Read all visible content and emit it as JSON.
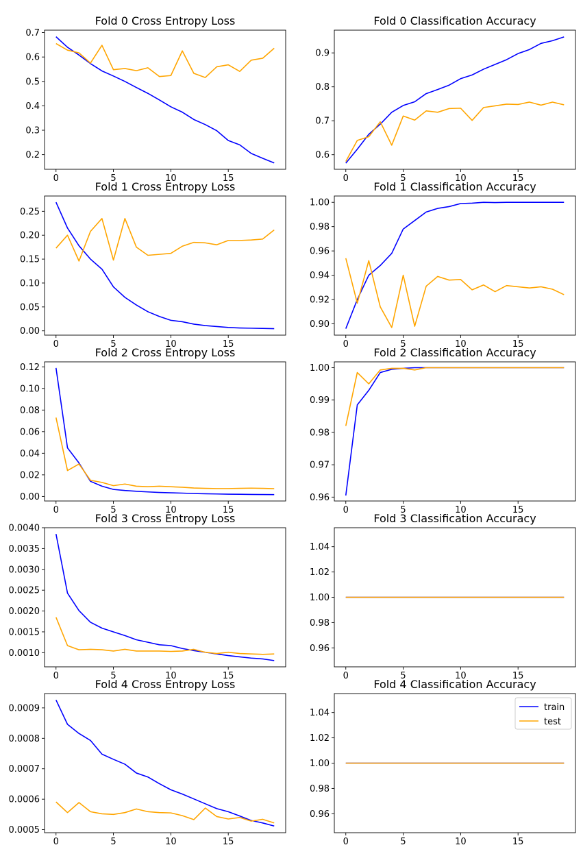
{
  "figure": {
    "background": "#ffffff"
  },
  "legend": {
    "location": "upper right",
    "entries": [
      {
        "label": "train",
        "color": "#0000ff"
      },
      {
        "label": "test",
        "color": "#ffa500"
      }
    ]
  },
  "chart_data": [
    {
      "type": "line",
      "title": "Fold 0 Cross Entropy Loss",
      "xlabel": "",
      "ylabel": "",
      "x": [
        0,
        1,
        2,
        3,
        4,
        5,
        6,
        7,
        8,
        9,
        10,
        11,
        12,
        13,
        14,
        15,
        16,
        17,
        18,
        19
      ],
      "xlim": [
        -1.0,
        20.0
      ],
      "ylim": [
        0.14,
        0.71
      ],
      "xticks": [
        0,
        5,
        10,
        15
      ],
      "yticks": [
        0.2,
        0.3,
        0.4,
        0.5,
        0.6,
        0.7
      ],
      "ytick_labels": [
        "0.2",
        "0.3",
        "0.4",
        "0.5",
        "0.6",
        "0.7"
      ],
      "grid": false,
      "legend": false,
      "series": [
        {
          "name": "train",
          "color": "#0000ff",
          "values": [
            0.683,
            0.64,
            0.608,
            0.573,
            0.543,
            0.522,
            0.5,
            0.475,
            0.451,
            0.424,
            0.396,
            0.374,
            0.344,
            0.323,
            0.298,
            0.258,
            0.24,
            0.205,
            0.185,
            0.166
          ]
        },
        {
          "name": "test",
          "color": "#ffa500",
          "values": [
            0.655,
            0.628,
            0.617,
            0.575,
            0.648,
            0.548,
            0.553,
            0.544,
            0.556,
            0.52,
            0.524,
            0.625,
            0.533,
            0.516,
            0.56,
            0.568,
            0.541,
            0.587,
            0.595,
            0.636
          ]
        }
      ]
    },
    {
      "type": "line",
      "title": "Fold 0 Classification Accuracy",
      "xlabel": "",
      "ylabel": "",
      "x": [
        0,
        1,
        2,
        3,
        4,
        5,
        6,
        7,
        8,
        9,
        10,
        11,
        12,
        13,
        14,
        15,
        16,
        17,
        18,
        19
      ],
      "xlim": [
        -1.0,
        20.0
      ],
      "ylim": [
        0.557,
        0.967
      ],
      "xticks": [
        0,
        5,
        10,
        15
      ],
      "yticks": [
        0.6,
        0.7,
        0.8,
        0.9
      ],
      "ytick_labels": [
        "0.6",
        "0.7",
        "0.8",
        "0.9"
      ],
      "grid": false,
      "legend": false,
      "series": [
        {
          "name": "train",
          "color": "#0000ff",
          "values": [
            0.575,
            0.616,
            0.66,
            0.69,
            0.725,
            0.745,
            0.756,
            0.78,
            0.792,
            0.805,
            0.824,
            0.835,
            0.852,
            0.866,
            0.88,
            0.898,
            0.91,
            0.928,
            0.936,
            0.947
          ]
        },
        {
          "name": "test",
          "color": "#ffa500",
          "values": [
            0.58,
            0.642,
            0.653,
            0.697,
            0.628,
            0.714,
            0.702,
            0.729,
            0.725,
            0.736,
            0.737,
            0.701,
            0.739,
            0.744,
            0.749,
            0.748,
            0.755,
            0.746,
            0.755,
            0.747
          ]
        }
      ]
    },
    {
      "type": "line",
      "title": "Fold 1 Cross Entropy Loss",
      "xlabel": "",
      "ylabel": "",
      "x": [
        0,
        1,
        2,
        3,
        4,
        5,
        6,
        7,
        8,
        9,
        10,
        11,
        12,
        13,
        14,
        15,
        16,
        17,
        18,
        19
      ],
      "xlim": [
        -1.0,
        20.0
      ],
      "ylim": [
        -0.009,
        0.282
      ],
      "xticks": [
        0,
        5,
        10,
        15
      ],
      "yticks": [
        0.0,
        0.05,
        0.1,
        0.15,
        0.2,
        0.25
      ],
      "ytick_labels": [
        "0.00",
        "0.05",
        "0.10",
        "0.15",
        "0.20",
        "0.25"
      ],
      "grid": false,
      "legend": false,
      "series": [
        {
          "name": "train",
          "color": "#0000ff",
          "values": [
            0.269,
            0.215,
            0.178,
            0.15,
            0.129,
            0.092,
            0.07,
            0.054,
            0.04,
            0.03,
            0.022,
            0.019,
            0.014,
            0.011,
            0.009,
            0.007,
            0.006,
            0.0055,
            0.005,
            0.0045
          ]
        },
        {
          "name": "test",
          "color": "#ffa500",
          "values": [
            0.173,
            0.2,
            0.146,
            0.208,
            0.235,
            0.148,
            0.235,
            0.175,
            0.158,
            0.16,
            0.162,
            0.177,
            0.185,
            0.184,
            0.18,
            0.189,
            0.189,
            0.19,
            0.192,
            0.211
          ]
        }
      ]
    },
    {
      "type": "line",
      "title": "Fold 1 Classification Accuracy",
      "xlabel": "",
      "ylabel": "",
      "x": [
        0,
        1,
        2,
        3,
        4,
        5,
        6,
        7,
        8,
        9,
        10,
        11,
        12,
        13,
        14,
        15,
        16,
        17,
        18,
        19
      ],
      "xlim": [
        -1.0,
        20.0
      ],
      "ylim": [
        0.8907,
        1.0052
      ],
      "xticks": [
        0,
        5,
        10,
        15
      ],
      "yticks": [
        0.9,
        0.92,
        0.94,
        0.96,
        0.98,
        1.0
      ],
      "ytick_labels": [
        "0.90",
        "0.92",
        "0.94",
        "0.96",
        "0.98",
        "1.00"
      ],
      "grid": false,
      "legend": false,
      "series": [
        {
          "name": "train",
          "color": "#0000ff",
          "values": [
            0.896,
            0.92,
            0.94,
            0.948,
            0.958,
            0.978,
            0.985,
            0.992,
            0.995,
            0.9965,
            0.999,
            0.9993,
            1.0,
            0.9998,
            1.0,
            1.0,
            1.0,
            1.0,
            1.0,
            1.0
          ]
        },
        {
          "name": "test",
          "color": "#ffa500",
          "values": [
            0.954,
            0.917,
            0.952,
            0.914,
            0.897,
            0.94,
            0.898,
            0.931,
            0.939,
            0.936,
            0.9365,
            0.928,
            0.932,
            0.9265,
            0.9315,
            0.9305,
            0.9295,
            0.9305,
            0.9285,
            0.924
          ]
        }
      ]
    },
    {
      "type": "line",
      "title": "Fold 2 Cross Entropy Loss",
      "xlabel": "",
      "ylabel": "",
      "x": [
        0,
        1,
        2,
        3,
        4,
        5,
        6,
        7,
        8,
        9,
        10,
        11,
        12,
        13,
        14,
        15,
        16,
        17,
        18,
        19
      ],
      "xlim": [
        -1.0,
        20.0
      ],
      "ylim": [
        -0.0042,
        0.1246
      ],
      "xticks": [
        0,
        5,
        10,
        15
      ],
      "yticks": [
        0.0,
        0.02,
        0.04,
        0.06,
        0.08,
        0.1,
        0.12
      ],
      "ytick_labels": [
        "0.00",
        "0.02",
        "0.04",
        "0.06",
        "0.08",
        "0.10",
        "0.12"
      ],
      "grid": false,
      "legend": false,
      "series": [
        {
          "name": "train",
          "color": "#0000ff",
          "values": [
            0.119,
            0.045,
            0.031,
            0.014,
            0.0095,
            0.0065,
            0.0055,
            0.0048,
            0.0042,
            0.0037,
            0.0034,
            0.0031,
            0.0027,
            0.0025,
            0.0023,
            0.0021,
            0.002,
            0.0019,
            0.0018,
            0.0017
          ]
        },
        {
          "name": "test",
          "color": "#ffa500",
          "values": [
            0.073,
            0.024,
            0.03,
            0.015,
            0.013,
            0.01,
            0.0115,
            0.0095,
            0.009,
            0.0095,
            0.009,
            0.0085,
            0.0078,
            0.0075,
            0.0073,
            0.0073,
            0.0075,
            0.0077,
            0.0075,
            0.0072
          ]
        }
      ]
    },
    {
      "type": "line",
      "title": "Fold 2 Classification Accuracy",
      "xlabel": "",
      "ylabel": "",
      "x": [
        0,
        1,
        2,
        3,
        4,
        5,
        6,
        7,
        8,
        9,
        10,
        11,
        12,
        13,
        14,
        15,
        16,
        17,
        18,
        19
      ],
      "xlim": [
        -1.0,
        20.0
      ],
      "ylim": [
        0.9588,
        1.0018
      ],
      "xticks": [
        0,
        5,
        10,
        15
      ],
      "yticks": [
        0.96,
        0.97,
        0.98,
        0.99,
        1.0
      ],
      "ytick_labels": [
        "0.96",
        "0.97",
        "0.98",
        "0.99",
        "1.00"
      ],
      "grid": false,
      "legend": false,
      "series": [
        {
          "name": "train",
          "color": "#0000ff",
          "values": [
            0.9605,
            0.9885,
            0.993,
            0.9985,
            0.9995,
            0.9998,
            1.0,
            1.0,
            1.0,
            1.0,
            1.0,
            1.0,
            1.0,
            1.0,
            1.0,
            1.0,
            1.0,
            1.0,
            1.0,
            1.0
          ]
        },
        {
          "name": "test",
          "color": "#ffa500",
          "values": [
            0.982,
            0.9985,
            0.995,
            0.9993,
            0.9998,
            0.9998,
            0.9993,
            1.0,
            1.0,
            1.0,
            1.0,
            1.0,
            1.0,
            1.0,
            1.0,
            1.0,
            1.0,
            1.0,
            1.0,
            1.0
          ]
        }
      ]
    },
    {
      "type": "line",
      "title": "Fold 3 Cross Entropy Loss",
      "xlabel": "",
      "ylabel": "",
      "x": [
        0,
        1,
        2,
        3,
        4,
        5,
        6,
        7,
        8,
        9,
        10,
        11,
        12,
        13,
        14,
        15,
        16,
        17,
        18,
        19
      ],
      "xlim": [
        -1.0,
        20.0
      ],
      "ylim": [
        0.00066,
        0.004
      ],
      "xticks": [
        0,
        5,
        10,
        15
      ],
      "yticks": [
        0.001,
        0.0015,
        0.002,
        0.0025,
        0.003,
        0.0035,
        0.004
      ],
      "ytick_labels": [
        "0.0010",
        "0.0015",
        "0.0020",
        "0.0025",
        "0.0030",
        "0.0035",
        "0.0040"
      ],
      "grid": false,
      "legend": false,
      "series": [
        {
          "name": "train",
          "color": "#0000ff",
          "values": [
            0.00385,
            0.00243,
            0.00201,
            0.00173,
            0.00159,
            0.0015,
            0.00141,
            0.00131,
            0.00125,
            0.00119,
            0.00117,
            0.0011,
            0.00105,
            0.00101,
            0.00097,
            0.00093,
            0.0009,
            0.00087,
            0.00085,
            0.00081
          ]
        },
        {
          "name": "test",
          "color": "#ffa500",
          "values": [
            0.00185,
            0.00117,
            0.00107,
            0.00108,
            0.00107,
            0.00104,
            0.00108,
            0.00104,
            0.00104,
            0.00104,
            0.00103,
            0.00104,
            0.00108,
            0.00101,
            0.00098,
            0.00101,
            0.00098,
            0.00097,
            0.00096,
            0.00097
          ]
        }
      ]
    },
    {
      "type": "line",
      "title": "Fold 3 Classification Accuracy",
      "xlabel": "",
      "ylabel": "",
      "x": [
        0,
        1,
        2,
        3,
        4,
        5,
        6,
        7,
        8,
        9,
        10,
        11,
        12,
        13,
        14,
        15,
        16,
        17,
        18,
        19
      ],
      "xlim": [
        -1.0,
        20.0
      ],
      "ylim": [
        0.945,
        1.055
      ],
      "xticks": [
        0,
        5,
        10,
        15
      ],
      "yticks": [
        0.96,
        0.98,
        1.0,
        1.02,
        1.04
      ],
      "ytick_labels": [
        "0.96",
        "0.98",
        "1.00",
        "1.02",
        "1.04"
      ],
      "grid": false,
      "legend": false,
      "series": [
        {
          "name": "train",
          "color": "#0000ff",
          "values": [
            1,
            1,
            1,
            1,
            1,
            1,
            1,
            1,
            1,
            1,
            1,
            1,
            1,
            1,
            1,
            1,
            1,
            1,
            1,
            1
          ]
        },
        {
          "name": "test",
          "color": "#ffa500",
          "values": [
            1,
            1,
            1,
            1,
            1,
            1,
            1,
            1,
            1,
            1,
            1,
            1,
            1,
            1,
            1,
            1,
            1,
            1,
            1,
            1
          ]
        }
      ]
    },
    {
      "type": "line",
      "title": "Fold 4 Cross Entropy Loss",
      "xlabel": "",
      "ylabel": "",
      "x": [
        0,
        1,
        2,
        3,
        4,
        5,
        6,
        7,
        8,
        9,
        10,
        11,
        12,
        13,
        14,
        15,
        16,
        17,
        18,
        19
      ],
      "xlim": [
        -1.0,
        20.0
      ],
      "ylim": [
        0.00049,
        0.000947
      ],
      "xticks": [
        0,
        5,
        10,
        15
      ],
      "yticks": [
        0.0005,
        0.0006,
        0.0007,
        0.0008,
        0.0009
      ],
      "ytick_labels": [
        "0.0005",
        "0.0006",
        "0.0007",
        "0.0008",
        "0.0009"
      ],
      "grid": false,
      "legend": false,
      "series": [
        {
          "name": "train",
          "color": "#0000ff",
          "values": [
            0.000926,
            0.000846,
            0.000816,
            0.000793,
            0.000748,
            0.000731,
            0.000715,
            0.000686,
            0.000673,
            0.000651,
            0.000631,
            0.000617,
            0.000601,
            0.000585,
            0.000569,
            0.000559,
            0.000545,
            0.00053,
            0.000522,
            0.000512
          ]
        },
        {
          "name": "test",
          "color": "#ffa500",
          "values": [
            0.000591,
            0.000556,
            0.000589,
            0.000559,
            0.000552,
            0.00055,
            0.000556,
            0.000568,
            0.000559,
            0.000556,
            0.000555,
            0.000546,
            0.000533,
            0.000571,
            0.000543,
            0.000535,
            0.00054,
            0.000528,
            0.000534,
            0.000522
          ]
        }
      ]
    },
    {
      "type": "line",
      "title": "Fold 4 Classification Accuracy",
      "xlabel": "",
      "ylabel": "",
      "x": [
        0,
        1,
        2,
        3,
        4,
        5,
        6,
        7,
        8,
        9,
        10,
        11,
        12,
        13,
        14,
        15,
        16,
        17,
        18,
        19
      ],
      "xlim": [
        -1.0,
        20.0
      ],
      "ylim": [
        0.945,
        1.055
      ],
      "xticks": [
        0,
        5,
        10,
        15
      ],
      "yticks": [
        0.96,
        0.98,
        1.0,
        1.02,
        1.04
      ],
      "ytick_labels": [
        "0.96",
        "0.98",
        "1.00",
        "1.02",
        "1.04"
      ],
      "grid": false,
      "legend": true,
      "legend_location": "upper right",
      "series": [
        {
          "name": "train",
          "color": "#0000ff",
          "values": [
            1,
            1,
            1,
            1,
            1,
            1,
            1,
            1,
            1,
            1,
            1,
            1,
            1,
            1,
            1,
            1,
            1,
            1,
            1,
            1
          ]
        },
        {
          "name": "test",
          "color": "#ffa500",
          "values": [
            1,
            1,
            1,
            1,
            1,
            1,
            1,
            1,
            1,
            1,
            1,
            1,
            1,
            1,
            1,
            1,
            1,
            1,
            1,
            1
          ]
        }
      ]
    }
  ]
}
